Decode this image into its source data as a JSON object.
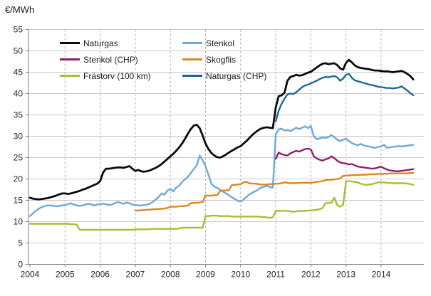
{
  "chart_data": {
    "type": "line",
    "title": "",
    "ylabel": "€/MWh",
    "xlabel": "",
    "ylim": [
      0,
      55
    ],
    "ytick_step": 5,
    "x_tick_years": [
      2004,
      2005,
      2006,
      2007,
      2008,
      2009,
      2010,
      2011,
      2012,
      2013,
      2014
    ],
    "x_unit": "month",
    "grid": {
      "horizontal": "solid",
      "vertical": "dashed"
    },
    "legend_position": "top-inside-two-columns",
    "legend_columns": [
      [
        0,
        2,
        4
      ],
      [
        1,
        3,
        5
      ]
    ],
    "colors": {
      "axis": "#7f7f7f",
      "grid_h": "#c9c9c9",
      "grid_v": "#ababab",
      "text": "#262626"
    },
    "series": [
      {
        "name": "Naturgas",
        "slug": "naturgas",
        "color": "#0a0a0a",
        "start": "2004-01",
        "start_offset_months": 0,
        "values": [
          15.6,
          15.4,
          15.3,
          15.2,
          15.3,
          15.4,
          15.5,
          15.7,
          15.9,
          16.1,
          16.4,
          16.6,
          16.6,
          16.5,
          16.6,
          16.8,
          17.0,
          17.2,
          17.5,
          17.7,
          18.0,
          18.3,
          18.6,
          18.9,
          19.5,
          21.5,
          22.4,
          22.4,
          22.5,
          22.6,
          22.7,
          22.7,
          22.6,
          22.8,
          23.0,
          22.4,
          21.9,
          22.1,
          21.8,
          21.7,
          21.8,
          22.0,
          22.3,
          22.6,
          23.0,
          23.5,
          24.1,
          24.7,
          25.3,
          25.9,
          26.6,
          27.4,
          28.3,
          29.4,
          30.6,
          31.7,
          32.5,
          32.7,
          31.9,
          30.2,
          28.3,
          27.0,
          26.1,
          25.5,
          25.1,
          25.0,
          25.3,
          25.7,
          26.2,
          26.6,
          27.0,
          27.4,
          27.7,
          28.3,
          28.9,
          29.6,
          30.3,
          30.9,
          31.4,
          31.8,
          32.0,
          32.1,
          32.0,
          31.9,
          36.8,
          39.4,
          39.6,
          40.2,
          43.0,
          43.9,
          44.1,
          44.4,
          44.2,
          44.3,
          44.6,
          44.9,
          45.1,
          45.6,
          46.1,
          46.6,
          47.0,
          47.1,
          46.9,
          47.0,
          47.1,
          46.7,
          45.9,
          45.6,
          47.2,
          47.9,
          47.3,
          46.6,
          46.2,
          46.0,
          45.9,
          45.8,
          45.7,
          45.5,
          45.4,
          45.4,
          45.3,
          45.2,
          45.2,
          45.1,
          45.0,
          45.1,
          45.2,
          45.3,
          45.0,
          44.6,
          44.1,
          43.3
        ]
      },
      {
        "name": "Stenkol",
        "slug": "stenkol",
        "color": "#6fa8d4",
        "start": "2004-01",
        "start_offset_months": 0,
        "values": [
          11.3,
          11.9,
          12.5,
          13.0,
          13.4,
          13.6,
          13.8,
          13.8,
          13.7,
          13.6,
          13.7,
          13.8,
          13.9,
          14.1,
          14.3,
          14.0,
          13.8,
          13.7,
          13.8,
          14.0,
          14.2,
          14.0,
          13.8,
          14.0,
          14.1,
          14.2,
          14.1,
          13.9,
          14.0,
          14.3,
          14.6,
          14.4,
          14.2,
          14.5,
          14.3,
          14.0,
          13.9,
          13.8,
          13.8,
          13.9,
          14.0,
          14.2,
          14.6,
          15.2,
          15.8,
          16.6,
          16.3,
          17.3,
          17.6,
          17.1,
          18.0,
          18.4,
          19.3,
          19.9,
          20.5,
          21.4,
          22.3,
          23.2,
          25.5,
          24.4,
          23.0,
          21.0,
          18.9,
          18.2,
          17.9,
          17.5,
          17.0,
          16.6,
          16.2,
          15.7,
          15.3,
          14.9,
          14.7,
          15.2,
          15.8,
          16.4,
          16.8,
          17.1,
          17.5,
          18.0,
          18.2,
          18.4,
          18.1,
          18.0,
          30.5,
          31.6,
          31.8,
          31.3,
          31.5,
          31.2,
          31.6,
          32.0,
          31.7,
          32.0,
          32.3,
          31.9,
          32.4,
          30.0,
          29.3,
          29.5,
          29.7,
          29.6,
          29.8,
          30.3,
          29.8,
          29.2,
          28.9,
          29.2,
          29.4,
          28.9,
          28.4,
          28.1,
          27.9,
          28.2,
          27.9,
          27.7,
          27.6,
          27.4,
          27.3,
          27.5,
          27.6,
          28.0,
          27.3,
          27.4,
          27.5,
          27.6,
          27.7,
          27.6,
          27.7,
          27.8,
          27.9,
          28.0
        ]
      },
      {
        "name": "Stenkol (CHP)",
        "slug": "stenkol-chp",
        "color": "#921b6e",
        "start": "2011-01",
        "start_offset_months": 84,
        "values": [
          24.7,
          26.2,
          25.8,
          25.6,
          25.5,
          26.0,
          26.3,
          26.6,
          26.4,
          26.7,
          27.0,
          27.1,
          26.9,
          25.3,
          24.8,
          24.5,
          24.3,
          24.6,
          24.8,
          25.3,
          24.9,
          24.3,
          23.9,
          23.7,
          23.6,
          23.4,
          23.5,
          23.2,
          22.9,
          22.8,
          22.7,
          22.6,
          22.5,
          22.4,
          22.5,
          22.7,
          22.9,
          22.5,
          22.2,
          22.0,
          21.9,
          21.8,
          21.8,
          21.9,
          22.0,
          22.1,
          22.2,
          22.3
        ]
      },
      {
        "name": "Skogflis",
        "slug": "skogflis",
        "color": "#dc861f",
        "start": "2007-01",
        "start_offset_months": 36,
        "values": [
          12.6,
          12.6,
          12.7,
          12.7,
          12.8,
          12.8,
          12.9,
          12.9,
          13.0,
          13.0,
          13.1,
          13.2,
          13.5,
          13.5,
          13.5,
          13.6,
          13.6,
          13.7,
          13.8,
          14.3,
          14.4,
          14.4,
          14.5,
          14.6,
          16.1,
          16.1,
          16.1,
          16.2,
          16.2,
          17.2,
          17.3,
          17.3,
          17.4,
          18.6,
          18.6,
          18.7,
          18.8,
          19.2,
          19.3,
          19.0,
          18.9,
          18.9,
          18.8,
          18.7,
          18.7,
          18.7,
          18.8,
          18.8,
          18.9,
          18.9,
          19.0,
          19.2,
          19.1,
          19.0,
          19.0,
          19.0,
          19.1,
          19.1,
          19.1,
          19.1,
          19.1,
          19.2,
          19.3,
          19.4,
          19.5,
          19.7,
          19.8,
          19.8,
          19.9,
          20.0,
          20.1,
          20.7,
          20.8,
          20.8,
          20.9,
          20.9,
          20.9,
          21.0,
          21.0,
          21.0,
          21.1,
          21.1,
          21.1,
          21.2,
          21.2,
          21.2,
          21.2,
          21.3,
          21.3,
          21.3,
          21.3,
          21.3,
          21.3,
          21.3,
          21.4,
          21.4
        ]
      },
      {
        "name": "Frästorv (100 km)",
        "slug": "frastorv-100-km",
        "color": "#a8bf2d",
        "start": "2004-01",
        "start_offset_months": 0,
        "values": [
          9.5,
          9.5,
          9.5,
          9.5,
          9.5,
          9.5,
          9.5,
          9.5,
          9.5,
          9.5,
          9.5,
          9.5,
          9.5,
          9.5,
          9.4,
          9.4,
          9.3,
          8.1,
          8.1,
          8.1,
          8.1,
          8.1,
          8.1,
          8.1,
          8.1,
          8.1,
          8.1,
          8.1,
          8.1,
          8.1,
          8.1,
          8.1,
          8.1,
          8.1,
          8.1,
          8.1,
          8.2,
          8.2,
          8.2,
          8.2,
          8.2,
          8.2,
          8.3,
          8.3,
          8.3,
          8.3,
          8.3,
          8.3,
          8.3,
          8.3,
          8.3,
          8.4,
          8.6,
          8.6,
          8.6,
          8.6,
          8.6,
          8.6,
          8.6,
          8.6,
          11.3,
          11.3,
          11.4,
          11.4,
          11.4,
          11.3,
          11.3,
          11.3,
          11.3,
          11.2,
          11.2,
          11.2,
          11.2,
          11.2,
          11.2,
          11.2,
          11.2,
          11.2,
          11.2,
          11.1,
          11.1,
          11.0,
          10.9,
          11.0,
          12.5,
          12.5,
          12.5,
          12.6,
          12.5,
          12.4,
          12.3,
          12.4,
          12.5,
          12.5,
          12.5,
          12.6,
          12.6,
          12.7,
          12.8,
          12.9,
          13.2,
          14.3,
          14.4,
          14.4,
          15.6,
          13.9,
          13.5,
          13.9,
          19.4,
          19.5,
          19.4,
          19.3,
          19.2,
          18.9,
          18.7,
          18.6,
          18.7,
          18.8,
          19.0,
          19.2,
          19.2,
          19.2,
          19.1,
          19.1,
          19.0,
          19.0,
          19.0,
          19.0,
          19.0,
          18.9,
          18.8,
          18.6
        ]
      },
      {
        "name": "Naturgas (CHP)",
        "slug": "naturgas-chp",
        "color": "#1c6899",
        "start": "2011-01",
        "start_offset_months": 84,
        "values": [
          33.5,
          36.0,
          37.6,
          38.8,
          39.8,
          40.0,
          39.9,
          40.3,
          40.9,
          41.5,
          41.9,
          42.1,
          42.4,
          42.7,
          43.0,
          43.4,
          43.7,
          43.9,
          43.8,
          44.0,
          44.1,
          43.8,
          43.0,
          43.5,
          44.4,
          44.6,
          43.7,
          43.1,
          42.9,
          42.7,
          42.5,
          42.3,
          42.1,
          42.0,
          41.8,
          41.6,
          41.5,
          41.4,
          41.3,
          41.3,
          41.2,
          41.3,
          41.4,
          41.7,
          41.2,
          40.7,
          40.1,
          39.6
        ]
      }
    ]
  }
}
